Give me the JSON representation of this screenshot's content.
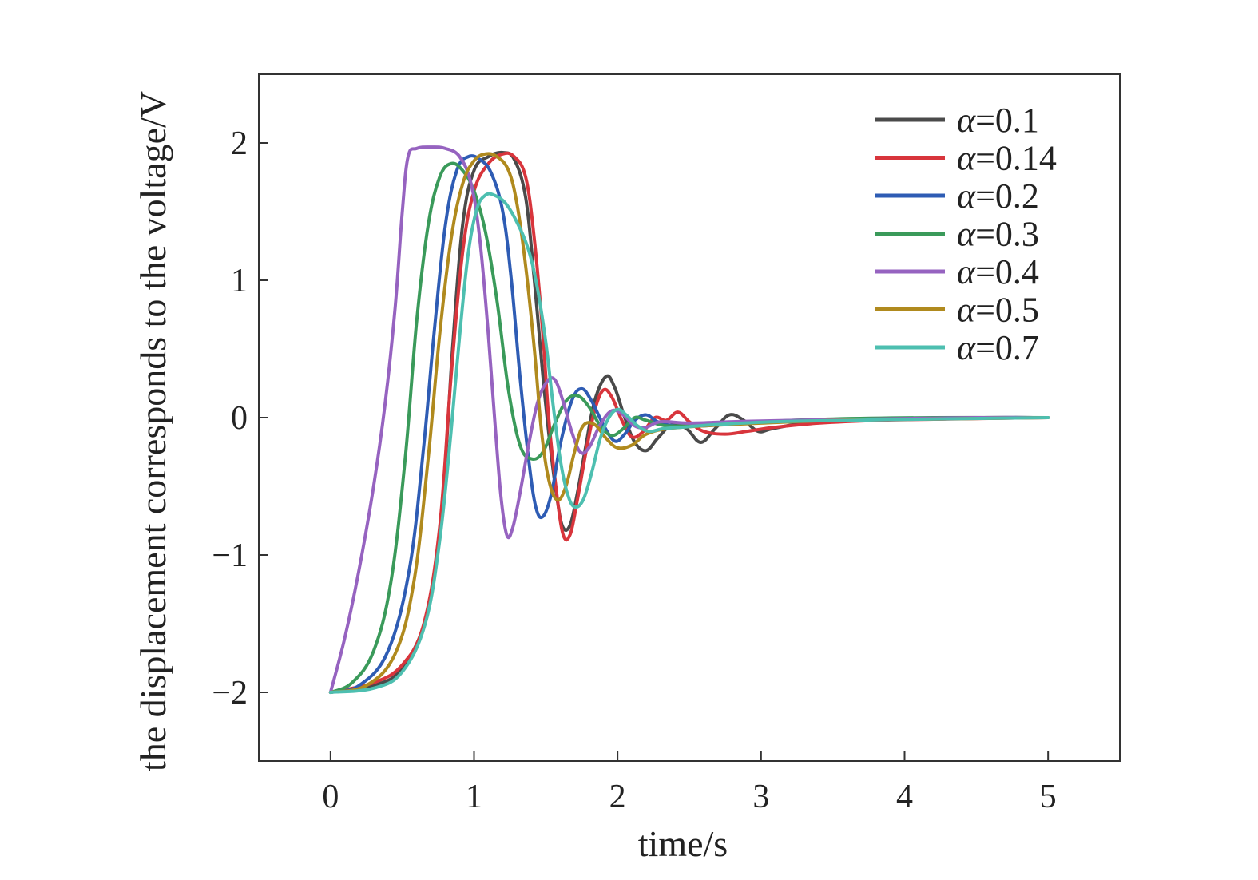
{
  "chart_data": {
    "type": "line",
    "title": "",
    "xlabel": "time/s",
    "ylabel": "the displacement corresponds to the voltage/V",
    "xlim": [
      -0.5,
      5.5
    ],
    "ylim": [
      -2.5,
      2.5
    ],
    "xticks": [
      0,
      1,
      2,
      3,
      4,
      5
    ],
    "xtick_labels": [
      "0",
      "1",
      "2",
      "3",
      "4",
      "5"
    ],
    "yticks": [
      -2,
      -1,
      0,
      1,
      2
    ],
    "ytick_labels": [
      "−2",
      "−1",
      "0",
      "1",
      "2"
    ],
    "grid": false,
    "legend_position": "top-right",
    "series": [
      {
        "name": "α=0.1",
        "color": "#4a4a4a",
        "points": [
          [
            0,
            -2
          ],
          [
            0.3,
            -1.95
          ],
          [
            0.5,
            -1.82
          ],
          [
            0.68,
            -1.4
          ],
          [
            0.78,
            -0.6
          ],
          [
            0.85,
            0.5
          ],
          [
            0.92,
            1.4
          ],
          [
            1.0,
            1.8
          ],
          [
            1.1,
            1.9
          ],
          [
            1.2,
            1.93
          ],
          [
            1.28,
            1.88
          ],
          [
            1.36,
            1.6
          ],
          [
            1.42,
            1.0
          ],
          [
            1.48,
            0.3
          ],
          [
            1.53,
            -0.2
          ],
          [
            1.58,
            -0.6
          ],
          [
            1.62,
            -0.8
          ],
          [
            1.67,
            -0.78
          ],
          [
            1.72,
            -0.55
          ],
          [
            1.78,
            -0.2
          ],
          [
            1.84,
            0.12
          ],
          [
            1.92,
            0.3
          ],
          [
            1.98,
            0.22
          ],
          [
            2.05,
            0.0
          ],
          [
            2.12,
            -0.18
          ],
          [
            2.2,
            -0.24
          ],
          [
            2.28,
            -0.15
          ],
          [
            2.38,
            -0.05
          ],
          [
            2.48,
            -0.08
          ],
          [
            2.58,
            -0.18
          ],
          [
            2.68,
            -0.08
          ],
          [
            2.78,
            0.02
          ],
          [
            2.88,
            -0.02
          ],
          [
            2.98,
            -0.1
          ],
          [
            3.08,
            -0.08
          ],
          [
            3.3,
            -0.04
          ],
          [
            3.6,
            -0.02
          ],
          [
            4.0,
            -0.01
          ],
          [
            4.5,
            0.0
          ],
          [
            5.0,
            0.0
          ]
        ]
      },
      {
        "name": "α=0.14",
        "color": "#d8353c",
        "points": [
          [
            0,
            -2
          ],
          [
            0.3,
            -1.93
          ],
          [
            0.5,
            -1.8
          ],
          [
            0.65,
            -1.5
          ],
          [
            0.76,
            -0.8
          ],
          [
            0.84,
            0.3
          ],
          [
            0.92,
            1.2
          ],
          [
            1.0,
            1.65
          ],
          [
            1.1,
            1.85
          ],
          [
            1.2,
            1.92
          ],
          [
            1.28,
            1.9
          ],
          [
            1.36,
            1.75
          ],
          [
            1.42,
            1.3
          ],
          [
            1.48,
            0.6
          ],
          [
            1.52,
            0.0
          ],
          [
            1.57,
            -0.5
          ],
          [
            1.62,
            -0.85
          ],
          [
            1.67,
            -0.85
          ],
          [
            1.72,
            -0.6
          ],
          [
            1.78,
            -0.25
          ],
          [
            1.84,
            0.05
          ],
          [
            1.9,
            0.2
          ],
          [
            1.96,
            0.15
          ],
          [
            2.03,
            -0.02
          ],
          [
            2.1,
            -0.14
          ],
          [
            2.18,
            -0.1
          ],
          [
            2.26,
            0.0
          ],
          [
            2.34,
            -0.02
          ],
          [
            2.42,
            0.04
          ],
          [
            2.5,
            -0.03
          ],
          [
            2.6,
            -0.1
          ],
          [
            2.75,
            -0.12
          ],
          [
            2.9,
            -0.1
          ],
          [
            3.1,
            -0.07
          ],
          [
            3.4,
            -0.04
          ],
          [
            3.8,
            -0.02
          ],
          [
            4.3,
            -0.01
          ],
          [
            5.0,
            0.0
          ]
        ]
      },
      {
        "name": "α=0.2",
        "color": "#2e5cb4",
        "points": [
          [
            0,
            -2
          ],
          [
            0.2,
            -1.95
          ],
          [
            0.4,
            -1.7
          ],
          [
            0.55,
            -1.1
          ],
          [
            0.65,
            -0.2
          ],
          [
            0.72,
            0.6
          ],
          [
            0.8,
            1.4
          ],
          [
            0.88,
            1.8
          ],
          [
            0.96,
            1.9
          ],
          [
            1.04,
            1.88
          ],
          [
            1.12,
            1.78
          ],
          [
            1.2,
            1.5
          ],
          [
            1.26,
            1.0
          ],
          [
            1.32,
            0.3
          ],
          [
            1.38,
            -0.3
          ],
          [
            1.43,
            -0.65
          ],
          [
            1.48,
            -0.72
          ],
          [
            1.54,
            -0.55
          ],
          [
            1.6,
            -0.2
          ],
          [
            1.68,
            0.12
          ],
          [
            1.75,
            0.21
          ],
          [
            1.82,
            0.12
          ],
          [
            1.9,
            -0.05
          ],
          [
            1.98,
            -0.17
          ],
          [
            2.05,
            -0.12
          ],
          [
            2.12,
            -0.02
          ],
          [
            2.2,
            0.02
          ],
          [
            2.28,
            -0.03
          ],
          [
            2.4,
            -0.06
          ],
          [
            2.6,
            -0.06
          ],
          [
            2.9,
            -0.04
          ],
          [
            3.3,
            -0.02
          ],
          [
            3.8,
            -0.01
          ],
          [
            4.5,
            0.0
          ],
          [
            5.0,
            0.0
          ]
        ]
      },
      {
        "name": "α=0.3",
        "color": "#3a9a5a",
        "points": [
          [
            0,
            -2
          ],
          [
            0.15,
            -1.93
          ],
          [
            0.3,
            -1.7
          ],
          [
            0.42,
            -1.2
          ],
          [
            0.52,
            -0.3
          ],
          [
            0.6,
            0.7
          ],
          [
            0.68,
            1.4
          ],
          [
            0.76,
            1.75
          ],
          [
            0.84,
            1.85
          ],
          [
            0.92,
            1.8
          ],
          [
            1.0,
            1.65
          ],
          [
            1.08,
            1.35
          ],
          [
            1.16,
            0.85
          ],
          [
            1.24,
            0.2
          ],
          [
            1.32,
            -0.2
          ],
          [
            1.4,
            -0.3
          ],
          [
            1.48,
            -0.25
          ],
          [
            1.56,
            -0.05
          ],
          [
            1.64,
            0.12
          ],
          [
            1.72,
            0.16
          ],
          [
            1.8,
            0.08
          ],
          [
            1.88,
            -0.06
          ],
          [
            1.96,
            -0.13
          ],
          [
            2.04,
            -0.08
          ],
          [
            2.12,
            0.0
          ],
          [
            2.2,
            -0.02
          ],
          [
            2.35,
            -0.06
          ],
          [
            2.6,
            -0.05
          ],
          [
            3.0,
            -0.03
          ],
          [
            3.5,
            -0.01
          ],
          [
            4.2,
            0.0
          ],
          [
            5.0,
            0.0
          ]
        ]
      },
      {
        "name": "α=0.4",
        "color": "#9663c0",
        "points": [
          [
            0,
            -2
          ],
          [
            0.1,
            -1.6
          ],
          [
            0.2,
            -1.1
          ],
          [
            0.3,
            -0.5
          ],
          [
            0.38,
            0.1
          ],
          [
            0.45,
            0.8
          ],
          [
            0.5,
            1.5
          ],
          [
            0.54,
            1.9
          ],
          [
            0.6,
            1.96
          ],
          [
            0.7,
            1.97
          ],
          [
            0.8,
            1.96
          ],
          [
            0.9,
            1.9
          ],
          [
            0.98,
            1.7
          ],
          [
            1.04,
            1.3
          ],
          [
            1.1,
            0.6
          ],
          [
            1.15,
            -0.1
          ],
          [
            1.19,
            -0.6
          ],
          [
            1.23,
            -0.86
          ],
          [
            1.27,
            -0.8
          ],
          [
            1.32,
            -0.55
          ],
          [
            1.38,
            -0.2
          ],
          [
            1.44,
            0.1
          ],
          [
            1.5,
            0.25
          ],
          [
            1.56,
            0.28
          ],
          [
            1.62,
            0.12
          ],
          [
            1.68,
            -0.1
          ],
          [
            1.74,
            -0.25
          ],
          [
            1.8,
            -0.22
          ],
          [
            1.88,
            -0.05
          ],
          [
            1.96,
            0.05
          ],
          [
            2.04,
            0.02
          ],
          [
            2.12,
            -0.06
          ],
          [
            2.2,
            -0.07
          ],
          [
            2.3,
            -0.03
          ],
          [
            2.5,
            -0.04
          ],
          [
            2.8,
            -0.03
          ],
          [
            3.2,
            -0.02
          ],
          [
            3.8,
            -0.01
          ],
          [
            4.5,
            0.0
          ],
          [
            5.0,
            0.0
          ]
        ]
      },
      {
        "name": "α=0.5",
        "color": "#b08a1e",
        "points": [
          [
            0,
            -2
          ],
          [
            0.25,
            -1.95
          ],
          [
            0.45,
            -1.72
          ],
          [
            0.58,
            -1.2
          ],
          [
            0.68,
            -0.3
          ],
          [
            0.76,
            0.6
          ],
          [
            0.84,
            1.3
          ],
          [
            0.92,
            1.7
          ],
          [
            1.0,
            1.87
          ],
          [
            1.08,
            1.92
          ],
          [
            1.16,
            1.9
          ],
          [
            1.24,
            1.8
          ],
          [
            1.3,
            1.55
          ],
          [
            1.36,
            1.1
          ],
          [
            1.42,
            0.5
          ],
          [
            1.47,
            -0.1
          ],
          [
            1.52,
            -0.45
          ],
          [
            1.58,
            -0.6
          ],
          [
            1.64,
            -0.5
          ],
          [
            1.7,
            -0.25
          ],
          [
            1.76,
            -0.06
          ],
          [
            1.84,
            -0.05
          ],
          [
            1.92,
            -0.15
          ],
          [
            2.0,
            -0.22
          ],
          [
            2.1,
            -0.2
          ],
          [
            2.2,
            -0.12
          ],
          [
            2.35,
            -0.08
          ],
          [
            2.6,
            -0.06
          ],
          [
            3.0,
            -0.04
          ],
          [
            3.5,
            -0.02
          ],
          [
            4.2,
            -0.01
          ],
          [
            5.0,
            0.0
          ]
        ]
      },
      {
        "name": "α=0.7",
        "color": "#4dbfb0",
        "points": [
          [
            0,
            -2
          ],
          [
            0.3,
            -1.97
          ],
          [
            0.5,
            -1.85
          ],
          [
            0.66,
            -1.5
          ],
          [
            0.76,
            -0.9
          ],
          [
            0.84,
            -0.1
          ],
          [
            0.9,
            0.6
          ],
          [
            0.96,
            1.2
          ],
          [
            1.02,
            1.52
          ],
          [
            1.08,
            1.62
          ],
          [
            1.14,
            1.62
          ],
          [
            1.22,
            1.56
          ],
          [
            1.3,
            1.42
          ],
          [
            1.38,
            1.22
          ],
          [
            1.44,
            0.95
          ],
          [
            1.5,
            0.55
          ],
          [
            1.55,
            0.1
          ],
          [
            1.6,
            -0.3
          ],
          [
            1.65,
            -0.55
          ],
          [
            1.7,
            -0.65
          ],
          [
            1.76,
            -0.6
          ],
          [
            1.82,
            -0.4
          ],
          [
            1.88,
            -0.15
          ],
          [
            1.94,
            0.0
          ],
          [
            2.0,
            0.06
          ],
          [
            2.06,
            0.02
          ],
          [
            2.14,
            -0.06
          ],
          [
            2.22,
            -0.1
          ],
          [
            2.32,
            -0.08
          ],
          [
            2.45,
            -0.07
          ],
          [
            2.7,
            -0.05
          ],
          [
            3.1,
            -0.03
          ],
          [
            3.6,
            -0.02
          ],
          [
            4.2,
            -0.01
          ],
          [
            5.0,
            0.0
          ]
        ]
      }
    ]
  }
}
